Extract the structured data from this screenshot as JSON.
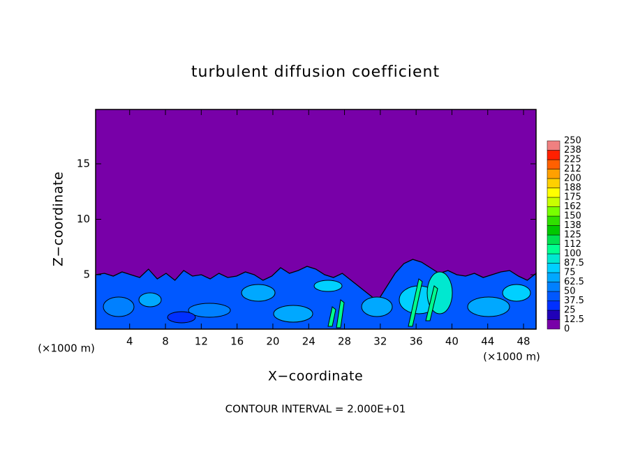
{
  "chart_data": {
    "type": "contour",
    "title": "turbulent diffusion coefficient",
    "x_label": "X−coordinate",
    "y_label": "Z−coordinate",
    "x_unit": "(×1000 m)",
    "y_unit": "(×1000 m)",
    "note": "CONTOUR INTERVAL = 2.000E+01",
    "xlim": [
      0.2,
      49.4
    ],
    "ylim": [
      0.1,
      19.9
    ],
    "xticks": [
      4,
      8,
      12,
      16,
      20,
      24,
      28,
      32,
      36,
      40,
      44,
      48
    ],
    "yticks": [
      5,
      10,
      15
    ],
    "colorbar": {
      "levels": [
        0,
        12.5,
        25,
        37.5,
        50,
        62.5,
        75,
        87.5,
        100,
        112,
        125,
        138,
        150,
        162,
        175,
        188,
        200,
        212,
        225,
        238,
        250
      ],
      "colors": [
        "#7800a8",
        "#2000b8",
        "#0030ff",
        "#0058ff",
        "#0080ff",
        "#00a8ff",
        "#00d0ff",
        "#00e8d0",
        "#00ff90",
        "#00e050",
        "#00c800",
        "#30e000",
        "#78ff00",
        "#c8ff00",
        "#ffff00",
        "#ffd000",
        "#ffa000",
        "#ff6000",
        "#ff2000",
        "#f08080"
      ]
    }
  }
}
